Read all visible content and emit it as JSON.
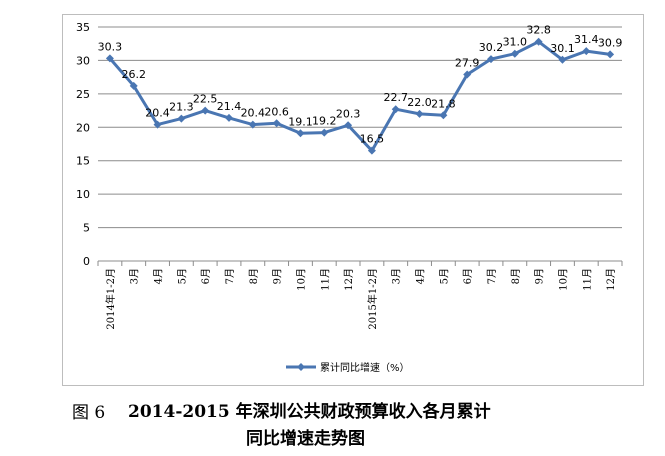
{
  "figure": {
    "number": "图 6",
    "title_line1": "2014-2015 年深圳公共财政预算收入各月累计",
    "title_line2": "同比增速走势图"
  },
  "chart_data": {
    "type": "line",
    "categories": [
      "2014年1-2月",
      "3月",
      "4月",
      "5月",
      "6月",
      "7月",
      "8月",
      "9月",
      "10月",
      "11月",
      "12月",
      "2015年1-2月",
      "3月",
      "4月",
      "5月",
      "6月",
      "7月",
      "8月",
      "9月",
      "10月",
      "11月",
      "12月"
    ],
    "series": [
      {
        "name": "累计同比增速（%）",
        "values": [
          30.3,
          26.2,
          20.4,
          21.3,
          22.5,
          21.4,
          20.4,
          20.6,
          19.1,
          19.2,
          20.3,
          16.5,
          22.7,
          22.0,
          21.8,
          27.9,
          30.2,
          31.0,
          32.8,
          30.1,
          31.4,
          30.9
        ],
        "color": "#4a76b2"
      }
    ],
    "ylim": [
      0,
      35
    ],
    "yticks": [
      0,
      5,
      10,
      15,
      20,
      25,
      30,
      35
    ],
    "ytick_labels": [
      "0",
      "5",
      "10",
      "15",
      "20",
      "25",
      "30",
      "35"
    ],
    "data_labels": [
      "30.3",
      "26.2",
      "20.4",
      "21.3",
      "22.5",
      "21.4",
      "20.4",
      "20.6",
      "19.1",
      "19.2",
      "20.3",
      "16.5",
      "22.7",
      "22.0",
      "21.8",
      "27.9",
      "30.2",
      "31.0",
      "32.8",
      "30.1",
      "31.4",
      "30.9"
    ],
    "grid": true,
    "legend": "bottom-center",
    "gridColor": "#8c8c8c"
  }
}
